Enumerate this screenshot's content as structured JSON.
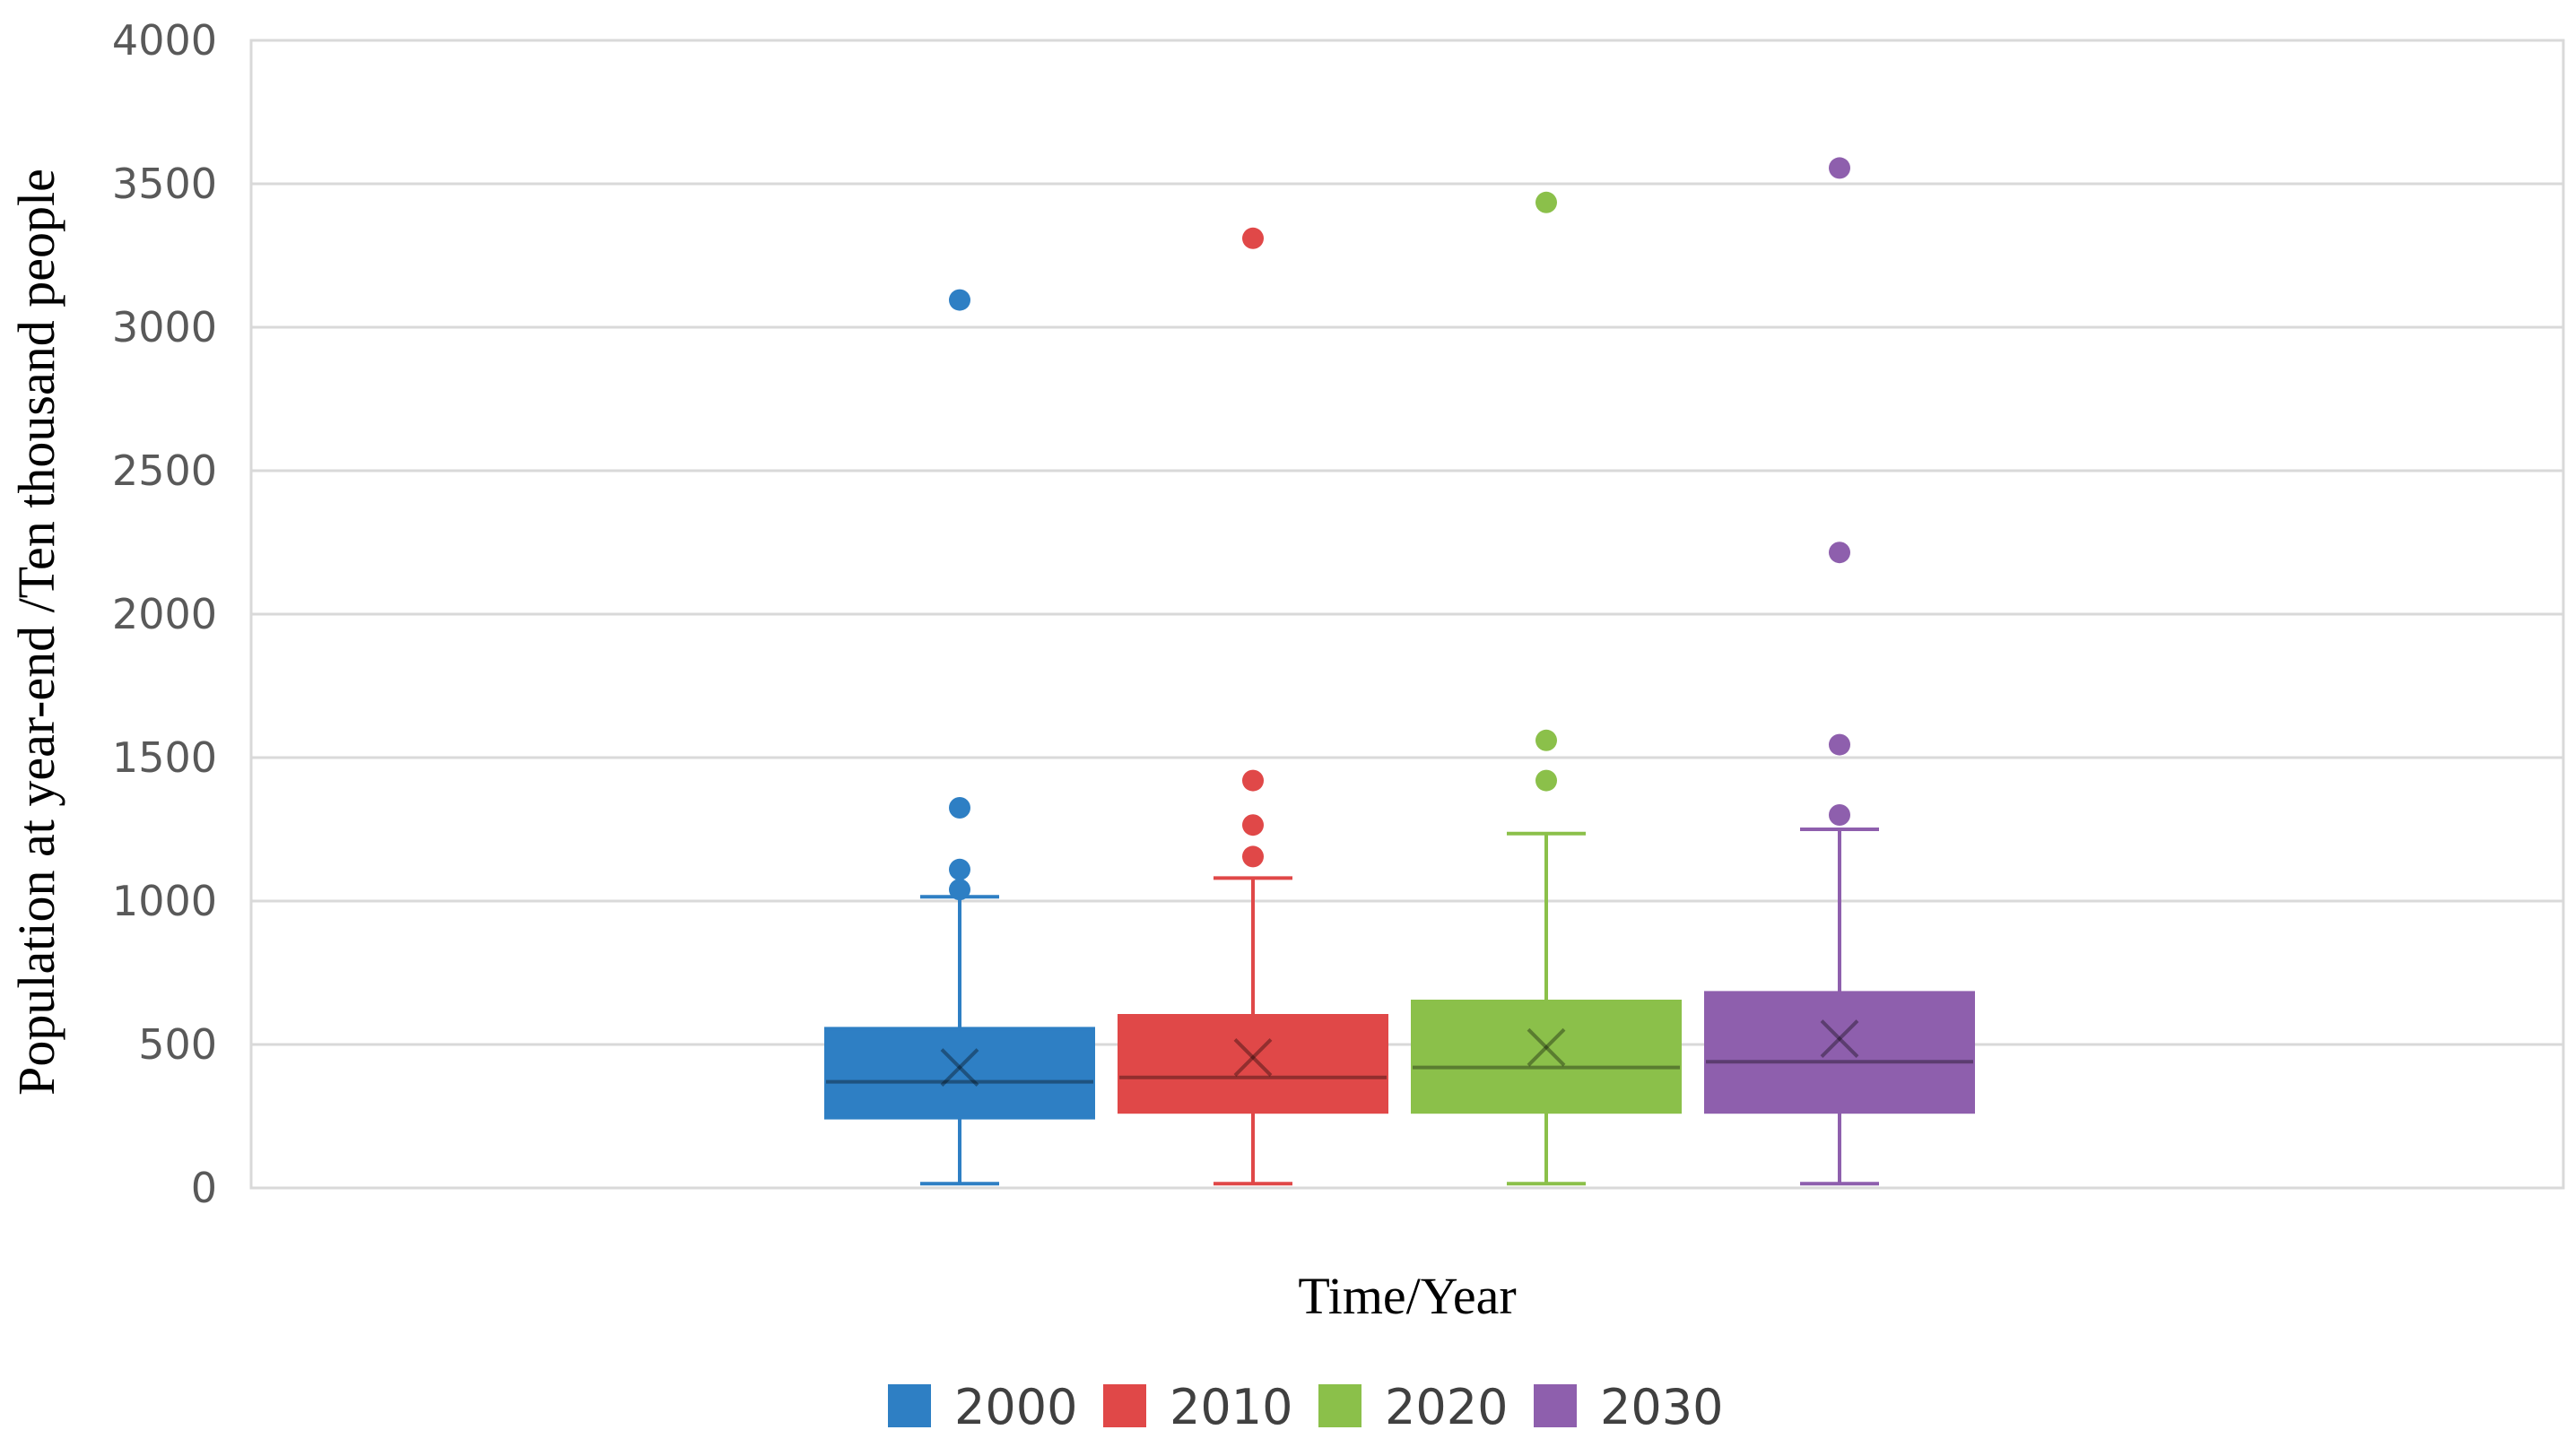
{
  "chart_data": {
    "type": "box",
    "xlabel": "Time/Year",
    "ylabel": "Population at year-end /Ten thousand people",
    "ylim": [
      0,
      4000
    ],
    "yticks": [
      0,
      500,
      1000,
      1500,
      2000,
      2500,
      3000,
      3500,
      4000
    ],
    "grid": true,
    "legend_position": "bottom",
    "series": [
      {
        "name": "2000",
        "color": "#2e7fc4",
        "whisker_low": 15,
        "q1": 245,
        "median": 370,
        "q3": 555,
        "whisker_high": 1015,
        "mean": 420,
        "outliers": [
          1040,
          1110,
          1325,
          3095
        ]
      },
      {
        "name": "2010",
        "color": "#e04848",
        "whisker_low": 15,
        "q1": 265,
        "median": 385,
        "q3": 600,
        "whisker_high": 1080,
        "mean": 455,
        "outliers": [
          1155,
          1265,
          1420,
          3310
        ]
      },
      {
        "name": "2020",
        "color": "#8bc04a",
        "whisker_low": 15,
        "q1": 265,
        "median": 420,
        "q3": 650,
        "whisker_high": 1235,
        "mean": 490,
        "outliers": [
          1420,
          1560,
          3435
        ]
      },
      {
        "name": "2030",
        "color": "#8e5fad",
        "whisker_low": 15,
        "q1": 265,
        "median": 440,
        "q3": 680,
        "whisker_high": 1250,
        "mean": 520,
        "outliers": [
          1300,
          1545,
          2215,
          3555
        ]
      }
    ]
  }
}
